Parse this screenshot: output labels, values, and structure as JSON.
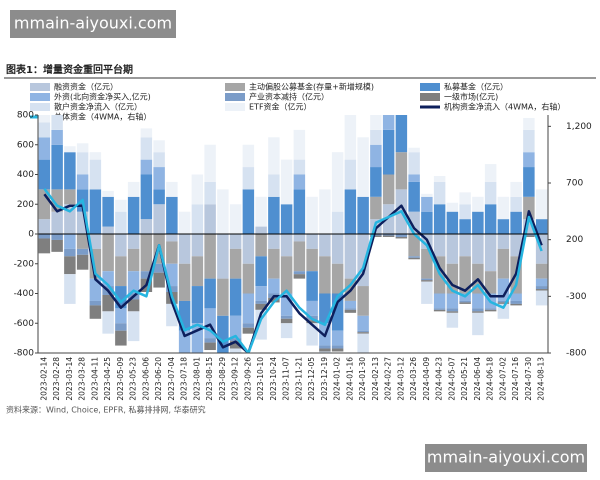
{
  "watermarks": [
    "mmain-aiyouxi.com",
    "mmain-aiyouxi.com"
  ],
  "chart_data": {
    "type": "bar",
    "title": "图表1：增量资金重回平台期",
    "source": "资料来源：Wind, Choice, EPFR, 私募排排网, 华泰研究",
    "categories": [
      "2023-02-14",
      "2023-02-28",
      "2023-03-14",
      "2023-03-28",
      "2023-04-11",
      "2023-04-25",
      "2023-05-09",
      "2023-05-23",
      "2023-06-06",
      "2023-06-20",
      "2023-07-04",
      "2023-07-18",
      "2023-08-01",
      "2023-08-15",
      "2023-08-29",
      "2023-09-12",
      "2023-09-26",
      "2023-10-10",
      "2023-10-24",
      "2023-11-07",
      "2023-11-21",
      "2023-12-05",
      "2023-12-19",
      "2024-01-02",
      "2024-01-16",
      "2024-01-30",
      "2024-02-13",
      "2024-02-27",
      "2024-03-12",
      "2024-03-26",
      "2024-04-09",
      "2024-04-23",
      "2024-05-07",
      "2024-05-21",
      "2024-06-04",
      "2024-06-18",
      "2024-07-02",
      "2024-07-16",
      "2024-07-30",
      "2024-08-13"
    ],
    "ylim": [
      -800,
      800
    ],
    "yticks": [
      -800,
      -600,
      -400,
      -200,
      0,
      200,
      400,
      600,
      800
    ],
    "y2lim": [
      -800,
      1300
    ],
    "y2ticks": [
      -800,
      -300,
      200,
      700,
      {
        "value": 1200,
        "label": "1,200"
      }
    ],
    "legend": "top",
    "series": [
      {
        "name": "融资资金（亿元）",
        "type": "bar",
        "color": "#b8c7dd",
        "values": [
          100,
          150,
          200,
          150,
          -100,
          50,
          -150,
          -100,
          100,
          200,
          -50,
          -200,
          -150,
          200,
          -300,
          -100,
          -200,
          50,
          -100,
          -150,
          -50,
          -100,
          -150,
          -200,
          -300,
          -350,
          100,
          200,
          300,
          150,
          -100,
          -150,
          -200,
          -150,
          -200,
          -250,
          -100,
          -150,
          100,
          -200
        ]
      },
      {
        "name": "主动偏股公募基金(存量+新增规模)",
        "type": "bar",
        "color": "#a6a6a6",
        "values": [
          200,
          150,
          100,
          -100,
          -200,
          -250,
          -200,
          -150,
          -250,
          -200,
          -150,
          -250,
          -200,
          -300,
          -250,
          -200,
          -200,
          -150,
          -200,
          -250,
          -200,
          -150,
          -250,
          -200,
          -150,
          -200,
          150,
          200,
          250,
          -150,
          -200,
          -250,
          -200,
          -250,
          -200,
          -150,
          -200,
          -250,
          150,
          -100
        ]
      },
      {
        "name": "私募基金（亿元）",
        "type": "bar",
        "color": "#4f8fd0",
        "values": [
          200,
          300,
          250,
          150,
          300,
          200,
          -150,
          250,
          300,
          100,
          250,
          -200,
          -250,
          -200,
          -300,
          -250,
          300,
          -200,
          250,
          200,
          300,
          -200,
          -200,
          -250,
          300,
          250,
          200,
          300,
          250,
          200,
          150,
          200,
          150,
          100,
          150,
          200,
          100,
          150,
          200,
          100
        ]
      },
      {
        "name": "外资(北向资金净买入,亿元)",
        "type": "bar",
        "color": "#8fb4e3",
        "values": [
          150,
          100,
          -100,
          100,
          -150,
          -100,
          -100,
          -150,
          100,
          150,
          -150,
          -200,
          -250,
          -200,
          -200,
          -150,
          -200,
          -100,
          -100,
          -150,
          100,
          -100,
          -150,
          -100,
          -50,
          -100,
          150,
          200,
          100,
          50,
          100,
          -100,
          -100,
          -50,
          -100,
          -100,
          -150,
          -50,
          100,
          -50
        ]
      },
      {
        "name": "产业资本减持（亿元）",
        "type": "bar",
        "color": "#7b9cc8",
        "values": [
          -30,
          -40,
          -50,
          -40,
          -30,
          -60,
          -50,
          -40,
          -50,
          -60,
          -40,
          -30,
          -40,
          -30,
          -20,
          -20,
          -30,
          -20,
          -30,
          -20,
          -20,
          -30,
          -20,
          -20,
          -10,
          -10,
          -10,
          -10,
          -20,
          -10,
          -10,
          -10,
          -20,
          -10,
          -20,
          -10,
          -10,
          -20,
          -10,
          -20
        ]
      },
      {
        "name": "一级市场(亿元)",
        "type": "bar",
        "color": "#7f7f7f",
        "values": [
          -100,
          -80,
          -120,
          -100,
          -90,
          -110,
          -100,
          -80,
          -90,
          -100,
          -80,
          -70,
          -60,
          -50,
          -60,
          -50,
          -40,
          -40,
          -30,
          -30,
          -30,
          -20,
          -20,
          -20,
          -20,
          -10,
          -10,
          -10,
          -10,
          -10,
          -10,
          -10,
          -10,
          -10,
          -10,
          -10,
          -10,
          -10,
          -10,
          -10
        ]
      },
      {
        "name": "散户资金净流入（亿元）",
        "type": "bar",
        "color": "#d6e2f1",
        "values": [
          100,
          150,
          -200,
          150,
          200,
          -150,
          150,
          -200,
          150,
          100,
          -150,
          -100,
          200,
          150,
          -200,
          -100,
          150,
          -200,
          150,
          -100,
          100,
          -150,
          -100,
          150,
          200,
          -150,
          100,
          150,
          200,
          150,
          -150,
          150,
          -100,
          100,
          -150,
          150,
          -100,
          100,
          150,
          -100
        ]
      },
      {
        "name": "ETF资金（亿元）",
        "type": "bar",
        "color": "#edf2f8",
        "values": [
          50,
          30,
          40,
          60,
          50,
          40,
          80,
          100,
          60,
          80,
          100,
          150,
          200,
          250,
          300,
          200,
          150,
          200,
          250,
          300,
          200,
          250,
          300,
          400,
          500,
          400,
          300,
          100,
          50,
          30,
          20,
          40,
          60,
          80,
          100,
          120,
          150,
          100,
          80,
          200
        ]
      },
      {
        "name": "机构资金净流入（4WMA，右轴）",
        "type": "line",
        "axis": "y2",
        "color": "#0d1f5c",
        "values": [
          600,
          450,
          500,
          500,
          -150,
          -250,
          -400,
          -300,
          -200,
          150,
          -350,
          -650,
          -600,
          -550,
          -750,
          -700,
          -800,
          -450,
          -300,
          -300,
          -450,
          -550,
          -650,
          -350,
          -250,
          -100,
          300,
          400,
          500,
          300,
          200,
          -50,
          -200,
          -250,
          -150,
          -300,
          -300,
          -100,
          450,
          150
        ]
      },
      {
        "name": "总体资金（4WMA，右轴）",
        "type": "line",
        "axis": "y2",
        "color": "#26b5e0",
        "values": [
          650,
          500,
          450,
          550,
          -100,
          -200,
          -350,
          -250,
          -300,
          150,
          -300,
          -600,
          -550,
          -600,
          -700,
          -650,
          -800,
          -500,
          -350,
          -250,
          -400,
          -500,
          -550,
          -300,
          -200,
          -50,
          350,
          400,
          450,
          250,
          150,
          -100,
          -250,
          -300,
          -200,
          -350,
          -400,
          -200,
          400,
          100
        ]
      }
    ]
  }
}
